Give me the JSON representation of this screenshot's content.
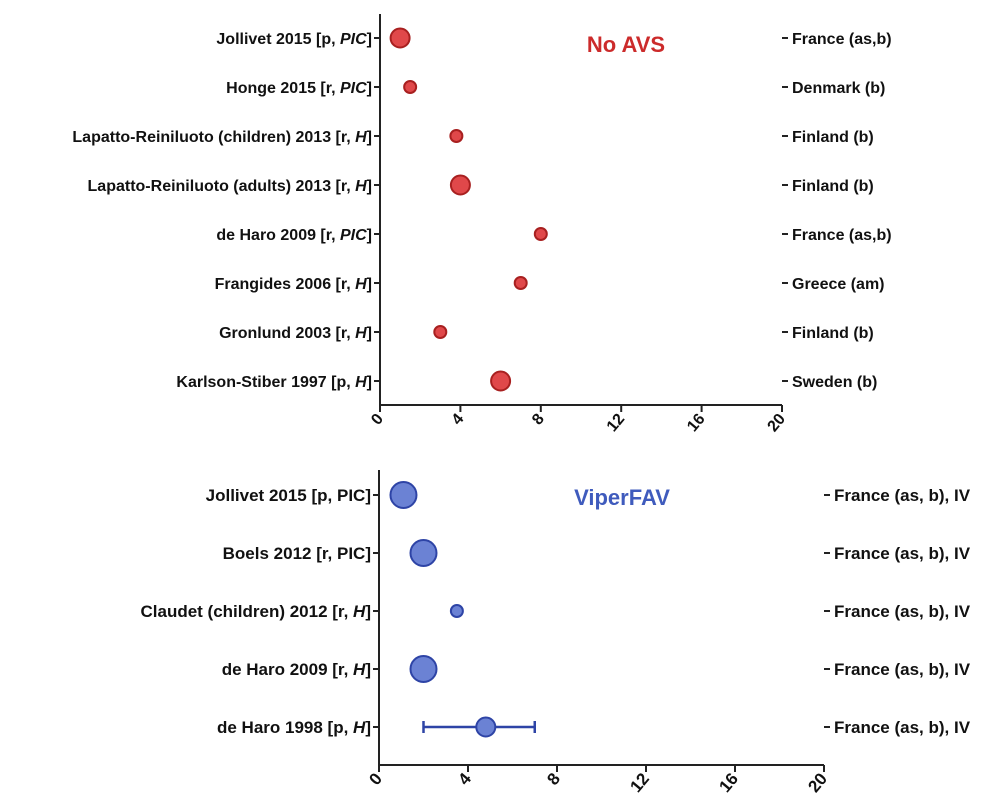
{
  "chart_data": [
    {
      "type": "scatter",
      "title": "No AVS",
      "title_color": "#cc2b2b",
      "marker_fill": "#e0484a",
      "marker_stroke": "#a82020",
      "xlim": [
        0,
        20
      ],
      "xticks": [
        "0",
        "4",
        "8",
        "12",
        "16",
        "20"
      ],
      "grid": false,
      "rows": [
        {
          "study": "Jollivet 2015 [p, ",
          "design": "PIC",
          "design_italic": true,
          "country": "France (as,b)",
          "value": 1,
          "size": 2,
          "error": null
        },
        {
          "study": "Honge 2015 [r, ",
          "design": "PIC",
          "design_italic": true,
          "country": "Denmark (b)",
          "value": 1.5,
          "size": 1,
          "error": null
        },
        {
          "study": "Lapatto-Reiniluoto (children) 2013 [r, ",
          "design": "H",
          "design_italic": true,
          "country": "Finland (b)",
          "value": 3.8,
          "size": 1,
          "error": null
        },
        {
          "study": "Lapatto-Reiniluoto (adults) 2013 [r, ",
          "design": "H",
          "design_italic": true,
          "country": "Finland (b)",
          "value": 4,
          "size": 2,
          "error": null
        },
        {
          "study": "de Haro 2009 [r, ",
          "design": "PIC",
          "design_italic": true,
          "country": "France (as,b)",
          "value": 8,
          "size": 1,
          "error": null
        },
        {
          "study": "Frangides 2006 [r, ",
          "design": "H",
          "design_italic": true,
          "country": "Greece (am)",
          "value": 7,
          "size": 1,
          "error": null
        },
        {
          "study": "Gronlund 2003 [r, ",
          "design": "H",
          "design_italic": true,
          "country": "Finland (b)",
          "value": 3,
          "size": 1,
          "error": null
        },
        {
          "study": "Karlson-Stiber 1997 [p, ",
          "design": "H",
          "design_italic": true,
          "country": "Sweden (b)",
          "value": 6,
          "size": 2,
          "error": null
        }
      ]
    },
    {
      "type": "scatter",
      "title": "ViperFAV",
      "title_color": "#3f5bbd",
      "marker_fill": "#6b82d4",
      "marker_stroke": "#2e44a6",
      "xlim": [
        0,
        20
      ],
      "xticks": [
        "0",
        "4",
        "8",
        "12",
        "16",
        "20"
      ],
      "grid": false,
      "rows": [
        {
          "study": "Jollivet 2015 [p, ",
          "design": "PIC",
          "design_italic": false,
          "country": "France (as, b), IV",
          "value": 1.1,
          "size": 3,
          "error": null
        },
        {
          "study": "Boels 2012 [r, ",
          "design": "PIC",
          "design_italic": false,
          "country": "France (as, b), IV",
          "value": 2,
          "size": 3,
          "error": null
        },
        {
          "study": "Claudet  (children) 2012 [r, ",
          "design": "H",
          "design_italic": true,
          "country": "France (as, b), IV",
          "value": 3.5,
          "size": 1,
          "error": null
        },
        {
          "study": "de Haro 2009 [r, ",
          "design": "H",
          "design_italic": true,
          "country": "France (as, b), IV",
          "value": 2,
          "size": 3,
          "error": null
        },
        {
          "study": "de Haro 1998 [p, ",
          "design": "H",
          "design_italic": true,
          "country": "France (as, b), IV",
          "value": 4.8,
          "size": 2,
          "error": [
            2,
            7
          ]
        }
      ]
    }
  ]
}
